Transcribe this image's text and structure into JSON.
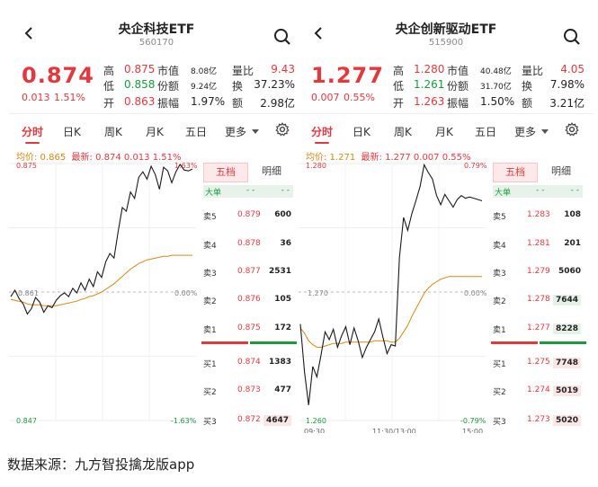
{
  "panels": [
    {
      "title": "央企科技ETF",
      "code": "560170",
      "price": "0.874",
      "change": "0.013",
      "change_pct": "1.51%",
      "quote": {
        "high_label": "高",
        "high": "0.875",
        "low_label": "低",
        "low": "0.858",
        "open_label": "开",
        "open": "0.863",
        "mktval_label": "市值",
        "mktval": "8.08亿",
        "shares_label": "份额",
        "shares": "9.24亿",
        "amp_label": "振幅",
        "amp": "1.97%",
        "volratio_label": "量比",
        "volratio": "9.43",
        "turnover_label": "换",
        "turnover": "37.23%",
        "amount_label": "额",
        "amount": "2.98亿"
      },
      "tabs": [
        "分时",
        "日K",
        "周K",
        "月K",
        "五日",
        "更多"
      ],
      "avg_text": "均价: 0.865",
      "latest_text": "最新: 0.874  0.013  1.51%",
      "y_top": "0.875",
      "y_top_pct": "1.63%",
      "y_mid": "0.861",
      "y_mid_pct": "0.00%",
      "y_bot": "0.847",
      "y_bot_pct": "-1.63%",
      "ob_tab_active": "五档",
      "ob_tab_other": "明细",
      "big_order_label": "大单",
      "big_order_value": "- -",
      "big_order_value2": "- -",
      "asks": [
        {
          "label": "卖5",
          "price": "0.879",
          "vol": "600"
        },
        {
          "label": "卖4",
          "price": "0.878",
          "vol": "36"
        },
        {
          "label": "卖3",
          "price": "0.877",
          "vol": "2531"
        },
        {
          "label": "卖2",
          "price": "0.876",
          "vol": "105"
        },
        {
          "label": "卖1",
          "price": "0.875",
          "vol": "172"
        }
      ],
      "bids": [
        {
          "label": "买1",
          "price": "0.874",
          "vol": "1383"
        },
        {
          "label": "买2",
          "price": "0.873",
          "vol": "477"
        },
        {
          "label": "买3",
          "price": "0.872",
          "vol": "4647"
        }
      ]
    },
    {
      "title": "央企创新驱动ETF",
      "code": "515900",
      "price": "1.277",
      "change": "0.007",
      "change_pct": "0.55%",
      "quote": {
        "high_label": "高",
        "high": "1.280",
        "low_label": "低",
        "low": "1.261",
        "open_label": "开",
        "open": "1.263",
        "mktval_label": "市值",
        "mktval": "40.48亿",
        "shares_label": "份额",
        "shares": "31.70亿",
        "amp_label": "振幅",
        "amp": "1.50%",
        "volratio_label": "量比",
        "volratio": "4.05",
        "turnover_label": "换",
        "turnover": "7.98%",
        "amount_label": "额",
        "amount": "3.21亿"
      },
      "tabs": [
        "分时",
        "日K",
        "周K",
        "月K",
        "五日",
        "更多"
      ],
      "avg_text": "均价: 1.271",
      "latest_text": "最新: 1.277  0.007  0.55%",
      "y_top": "1.280",
      "y_top_pct": "0.79%",
      "y_mid": "1.270",
      "y_mid_pct": "0.00%",
      "y_bot": "1.260",
      "y_bot_pct": "-0.79%",
      "x_start": "09:30",
      "x_mid": "11:30/13:00",
      "x_end": "15:00",
      "ob_tab_active": "五档",
      "ob_tab_other": "明细",
      "big_order_label": "大单",
      "big_order_value": "- -",
      "big_order_value2": "- -",
      "asks": [
        {
          "label": "卖5",
          "price": "1.283",
          "vol": "108"
        },
        {
          "label": "卖4",
          "price": "1.281",
          "vol": "201"
        },
        {
          "label": "卖3",
          "price": "1.279",
          "vol": "5060"
        },
        {
          "label": "卖2",
          "price": "1.278",
          "vol": "7644"
        },
        {
          "label": "卖1",
          "price": "1.277",
          "vol": "8228"
        }
      ],
      "bids": [
        {
          "label": "买1",
          "price": "1.275",
          "vol": "7748"
        },
        {
          "label": "买2",
          "price": "1.274",
          "vol": "5019"
        },
        {
          "label": "买3",
          "price": "1.273",
          "vol": "5020"
        }
      ]
    }
  ],
  "source_text": "数据来源：九方智投擒龙版app",
  "colors": {
    "up": "#e0393e",
    "down": "#1a9a3c",
    "avg": "#d4891a",
    "line": "#1a1a1a"
  },
  "chart_data": [
    {
      "type": "line",
      "y_range": [
        0.847,
        0.875
      ],
      "series": [
        {
          "values": [
            0.8605,
            0.8612,
            0.8603,
            0.8597,
            0.8586,
            0.8592,
            0.8604,
            0.8599,
            0.8588,
            0.8595,
            0.8593,
            0.8601,
            0.8606,
            0.8609,
            0.8605,
            0.8614,
            0.8609,
            0.862,
            0.8612,
            0.8624,
            0.8616,
            0.8632,
            0.8626,
            0.8643,
            0.8652,
            0.8647,
            0.8676,
            0.8702,
            0.8698,
            0.8719,
            0.8712,
            0.8735,
            0.8741,
            0.8733,
            0.8747,
            0.8738,
            0.8722,
            0.8746,
            0.8742,
            0.8729,
            0.8741,
            0.8749,
            0.8743,
            0.8742,
            0.8744
          ]
        },
        {
          "values": [
            0.8602,
            0.8601,
            0.86,
            0.8599,
            0.8597,
            0.8596,
            0.8596,
            0.8596,
            0.8595,
            0.8595,
            0.8595,
            0.8595,
            0.8596,
            0.8597,
            0.8598,
            0.8599,
            0.86,
            0.8602,
            0.8603,
            0.8605,
            0.8606,
            0.8608,
            0.861,
            0.8613,
            0.8616,
            0.8619,
            0.8623,
            0.8627,
            0.8631,
            0.8635,
            0.8638,
            0.8641,
            0.8643,
            0.8645,
            0.8646,
            0.8647,
            0.8648,
            0.8649,
            0.8649,
            0.865,
            0.865,
            0.865,
            0.865,
            0.865,
            0.865
          ]
        }
      ]
    },
    {
      "type": "line",
      "y_range": [
        1.26,
        1.28
      ],
      "series": [
        {
          "values": [
            1.2675,
            1.2638,
            1.2612,
            1.2642,
            1.2634,
            1.2651,
            1.2669,
            1.2663,
            1.2671,
            1.2657,
            1.2666,
            1.2673,
            1.2659,
            1.2672,
            1.2662,
            1.2649,
            1.2657,
            1.2663,
            1.2669,
            1.2679,
            1.2665,
            1.2652,
            1.2659,
            1.2658,
            1.2727,
            1.2758,
            1.2748,
            1.2761,
            1.2771,
            1.2782,
            1.2799,
            1.2793,
            1.2788,
            1.2775,
            1.2768,
            1.2776,
            1.2771,
            1.2766,
            1.2772,
            1.2775,
            1.2773,
            1.2774,
            1.2773,
            1.2772,
            1.2771
          ]
        },
        {
          "values": [
            1.2672,
            1.2668,
            1.2662,
            1.2659,
            1.2657,
            1.2657,
            1.2658,
            1.2659,
            1.266,
            1.266,
            1.266,
            1.2661,
            1.2661,
            1.2661,
            1.2661,
            1.2661,
            1.2661,
            1.2661,
            1.2662,
            1.2662,
            1.2662,
            1.2662,
            1.2661,
            1.2661,
            1.2664,
            1.2669,
            1.2674,
            1.2681,
            1.2687,
            1.2693,
            1.2699,
            1.2703,
            1.2706,
            1.2708,
            1.271,
            1.2711,
            1.2712,
            1.2712,
            1.2712,
            1.2712,
            1.2712,
            1.2712,
            1.2712,
            1.2712,
            1.2712
          ]
        }
      ]
    }
  ]
}
